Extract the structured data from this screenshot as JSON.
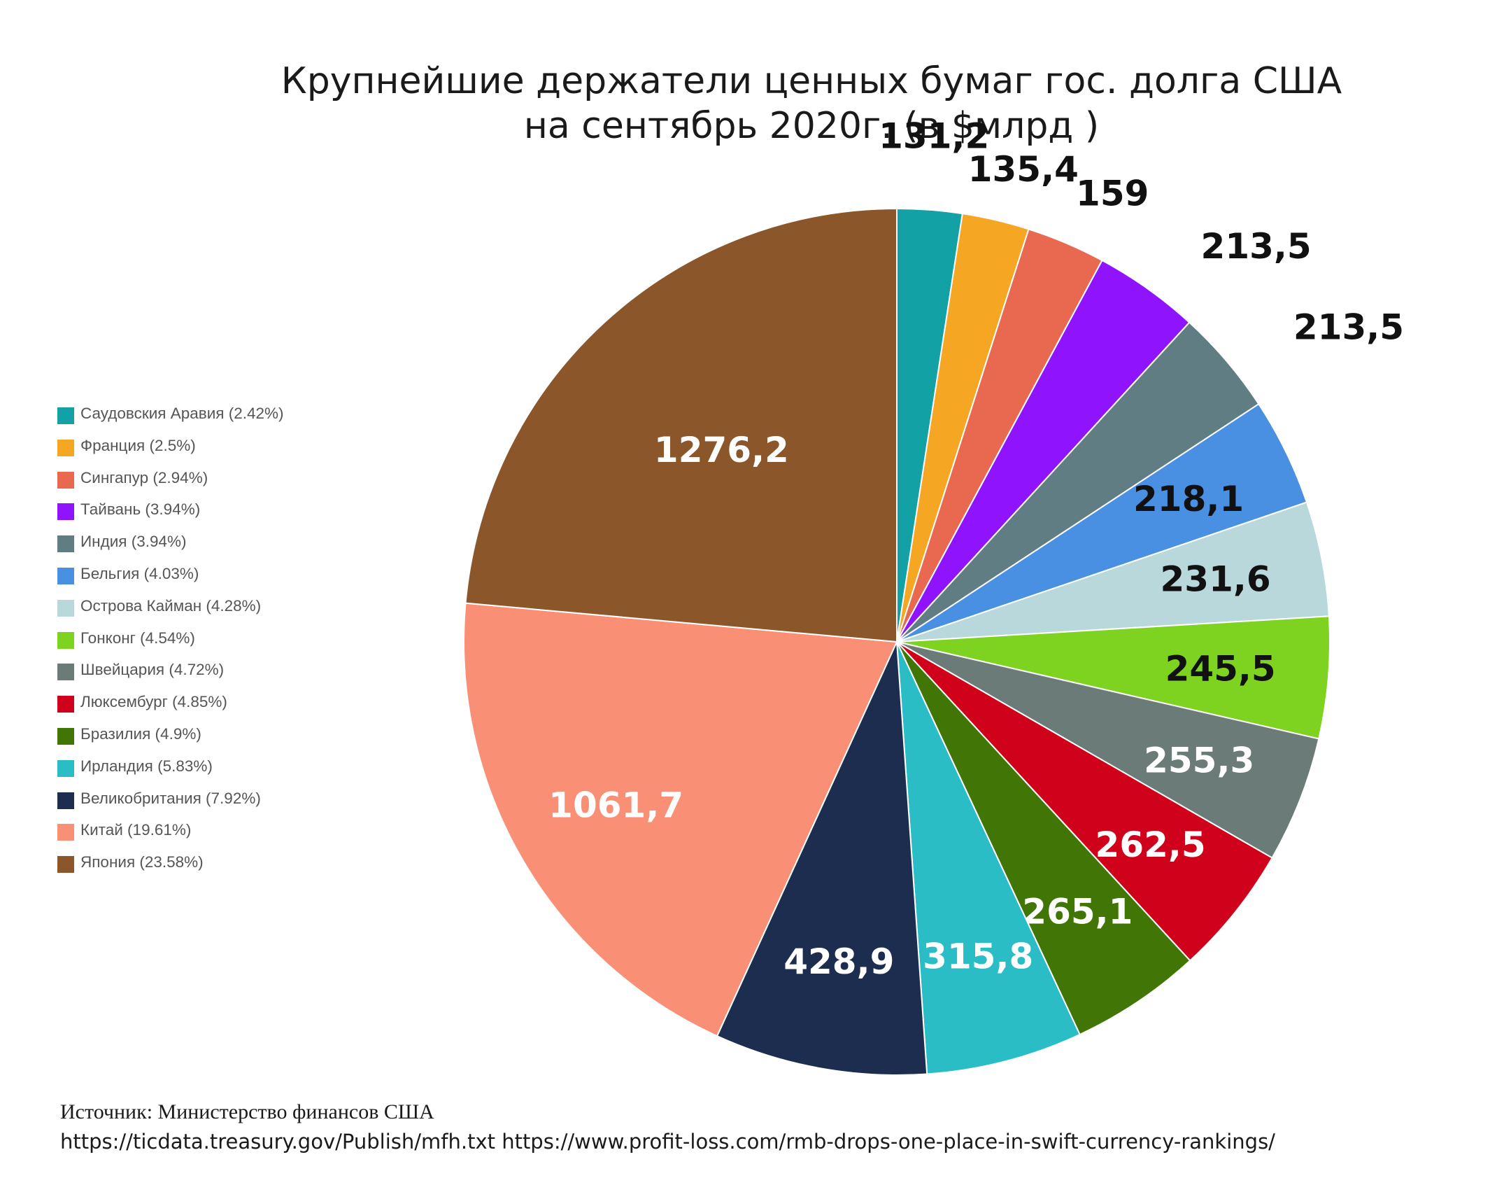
{
  "chart_data": {
    "type": "pie",
    "title": "Крупнейшие держатели ценных бумаг гос. долга США",
    "subtitle": "на сентябрь 2020г. (в $млрд )",
    "legend_position": "left",
    "slices": [
      {
        "name": "Саудовския Аравия",
        "legend": "Саудовския Аравия (2.42%)",
        "value": 131.2,
        "label": "131,2",
        "color": "#12a1a4",
        "label_color": "#111111"
      },
      {
        "name": "Франция",
        "legend": "Франция (2.5%)",
        "value": 135.4,
        "label": "135,4",
        "color": "#f5a623",
        "label_color": "#111111"
      },
      {
        "name": "Сингапур",
        "legend": "Сингапур (2.94%)",
        "value": 159,
        "label": "159",
        "color": "#e8694f",
        "label_color": "#111111"
      },
      {
        "name": "Тайвань",
        "legend": "Тайвань (3.94%)",
        "value": 213.5,
        "label": "213,5",
        "color": "#9013fe",
        "label_color": "#111111"
      },
      {
        "name": "Индия",
        "legend": "Индия (3.94%)",
        "value": 213.5,
        "label": "213,5",
        "color": "#607d84",
        "label_color": "#111111"
      },
      {
        "name": "Бельгия",
        "legend": "Бельгия (4.03%)",
        "value": 218.1,
        "label": "218,1",
        "color": "#4a90e2",
        "label_color": "#111111"
      },
      {
        "name": "Острова Кайман",
        "legend": "Острова Кайман (4.28%)",
        "value": 231.6,
        "label": "231,6",
        "color": "#b8d8dc",
        "label_color": "#111111"
      },
      {
        "name": "Гонконг",
        "legend": "Гонконг (4.54%)",
        "value": 245.5,
        "label": "245,5",
        "color": "#7ed321",
        "label_color": "#111111"
      },
      {
        "name": "Швейцария",
        "legend": "Швейцария (4.72%)",
        "value": 255.3,
        "label": "255,3",
        "color": "#6b7b78",
        "label_color": "#ffffff"
      },
      {
        "name": "Люксембург",
        "legend": "Люксембург (4.85%)",
        "value": 262.5,
        "label": "262,5",
        "color": "#d0021b",
        "label_color": "#ffffff"
      },
      {
        "name": "Бразилия",
        "legend": "Бразилия (4.9%)",
        "value": 265.1,
        "label": "265,1",
        "color": "#417505",
        "label_color": "#ffffff"
      },
      {
        "name": "Ирландия",
        "legend": "Ирландия (5.83%)",
        "value": 315.8,
        "label": "315,8",
        "color": "#2abdc6",
        "label_color": "#ffffff"
      },
      {
        "name": "Великобритания",
        "legend": "Великобритания (7.92%)",
        "value": 428.9,
        "label": "428,9",
        "color": "#1c2d4f",
        "label_color": "#ffffff"
      },
      {
        "name": "Китай",
        "legend": "Китай (19.61%)",
        "value": 1061.7,
        "label": "1061,7",
        "color": "#f99076",
        "label_color": "#ffffff"
      },
      {
        "name": "Япония",
        "legend": "Япония (23.58%)",
        "value": 1276.2,
        "label": "1276,2",
        "color": "#8b572a",
        "label_color": "#ffffff"
      }
    ]
  },
  "source": {
    "line1": "Источник: Министерство финансов США",
    "line2": "https://ticdata.treasury.gov/Publish/mfh.txt https://www.profit-loss.com/rmb-drops-one-place-in-swift-currency-rankings/"
  }
}
